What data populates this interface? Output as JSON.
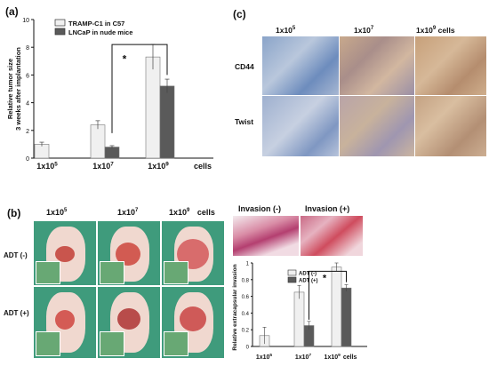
{
  "panels": {
    "a": "(a)",
    "b": "(b)",
    "c": "(c)"
  },
  "panel_a": {
    "chart_data": {
      "type": "bar",
      "categories": [
        "1x10^5",
        "1x10^7",
        "1x10^9"
      ],
      "category_display": [
        {
          "base": "1x10",
          "exp": "5",
          "suffix": ""
        },
        {
          "base": "1x10",
          "exp": "7",
          "suffix": ""
        },
        {
          "base": "1x10",
          "exp": "9",
          "suffix": ""
        }
      ],
      "cells_label": "cells",
      "ylabel_lines": [
        "Relative tumor size",
        "3 weeks after implantation"
      ],
      "ylim": [
        0,
        10
      ],
      "yticks": [
        "0",
        "2",
        "4",
        "6",
        "8",
        "10"
      ],
      "series": [
        {
          "name": "TRAMP-C1 in C57",
          "values": [
            1.0,
            2.4,
            7.3
          ],
          "errors": [
            0.15,
            0.3,
            0.9
          ],
          "color": "#f0f0f0"
        },
        {
          "name": "LNCaP in nude mice",
          "values": [
            null,
            0.8,
            5.2
          ],
          "errors": [
            null,
            0.1,
            0.5
          ],
          "color": "#5a5a5a"
        }
      ],
      "significance": "*"
    }
  },
  "panel_b": {
    "col_labels": [
      {
        "base": "1x10",
        "exp": "5",
        "suffix": ""
      },
      {
        "base": "1x10",
        "exp": "7",
        "suffix": ""
      },
      {
        "base": "1x10",
        "exp": "9",
        "suffix": "cells"
      }
    ],
    "row_labels": [
      "ADT (-)",
      "ADT (+)"
    ],
    "invasion_labels": [
      "Invasion (-)",
      "Invasion (+)"
    ],
    "chart_data": {
      "type": "bar",
      "categories": [
        "1x10^5",
        "1x10^7",
        "1x10^9"
      ],
      "category_display": [
        {
          "base": "1x10",
          "exp": "5",
          "suffix": ""
        },
        {
          "base": "1x10",
          "exp": "7",
          "suffix": ""
        },
        {
          "base": "1x10",
          "exp": "9",
          "suffix": "cells"
        }
      ],
      "ylabel": "Relative extracapsular invasion",
      "ylim": [
        0,
        1
      ],
      "yticks": [
        "0",
        "0.2",
        "0.4",
        "0.6",
        "0.8",
        "1"
      ],
      "series": [
        {
          "name": "ADT (-)",
          "values": [
            0.13,
            0.65,
            0.95
          ],
          "errors": [
            0.1,
            0.08,
            0.05
          ],
          "color": "#f0f0f0"
        },
        {
          "name": "ADT (+)",
          "values": [
            null,
            0.25,
            0.7
          ],
          "errors": [
            null,
            0.05,
            0.04
          ],
          "color": "#5a5a5a"
        }
      ],
      "significance": "*"
    }
  },
  "panel_c": {
    "col_labels": [
      {
        "base": "1x10",
        "exp": "5",
        "suffix": ""
      },
      {
        "base": "1x10",
        "exp": "7",
        "suffix": ""
      },
      {
        "base": "1x10",
        "exp": "9",
        "suffix": "cells"
      }
    ],
    "row_labels": [
      "CD44",
      "Twist"
    ]
  }
}
